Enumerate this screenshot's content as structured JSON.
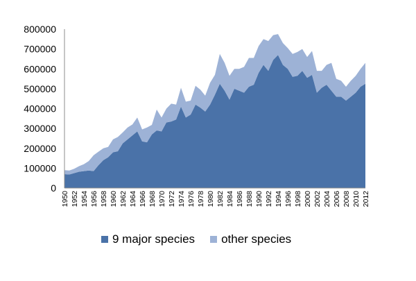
{
  "chart_data": {
    "type": "area",
    "stacked": true,
    "x": [
      1950,
      1951,
      1952,
      1953,
      1954,
      1955,
      1956,
      1957,
      1958,
      1959,
      1960,
      1961,
      1962,
      1963,
      1964,
      1965,
      1966,
      1967,
      1968,
      1969,
      1970,
      1971,
      1972,
      1973,
      1974,
      1975,
      1976,
      1977,
      1978,
      1979,
      1980,
      1981,
      1982,
      1983,
      1984,
      1985,
      1986,
      1987,
      1988,
      1989,
      1990,
      1991,
      1992,
      1993,
      1994,
      1995,
      1996,
      1997,
      1998,
      1999,
      2000,
      2001,
      2002,
      2003,
      2004,
      2005,
      2006,
      2007,
      2008,
      2009,
      2010,
      2011,
      2012
    ],
    "x_tick_labels": [
      "1950",
      "1952",
      "1954",
      "1956",
      "1958",
      "1960",
      "1962",
      "1964",
      "1966",
      "1968",
      "1970",
      "1972",
      "1974",
      "1976",
      "1978",
      "1980",
      "1982",
      "1984",
      "1986",
      "1988",
      "1990",
      "1992",
      "1994",
      "1996",
      "1998",
      "2000",
      "2002",
      "2004",
      "2006",
      "2008",
      "2010",
      "2012"
    ],
    "series": [
      {
        "name": "9 major species",
        "color": "#4a72a8",
        "values": [
          70000,
          68000,
          75000,
          82000,
          85000,
          88000,
          85000,
          115000,
          140000,
          155000,
          180000,
          185000,
          225000,
          245000,
          265000,
          285000,
          235000,
          230000,
          270000,
          290000,
          285000,
          330000,
          335000,
          345000,
          410000,
          355000,
          370000,
          420000,
          405000,
          385000,
          420000,
          470000,
          525000,
          490000,
          445000,
          500000,
          490000,
          480000,
          510000,
          520000,
          580000,
          620000,
          590000,
          645000,
          670000,
          620000,
          600000,
          560000,
          565000,
          590000,
          555000,
          570000,
          480000,
          505000,
          520000,
          490000,
          460000,
          460000,
          440000,
          460000,
          480000,
          510000,
          525000
        ]
      },
      {
        "name": "other species",
        "color": "#9db2d6",
        "values": [
          20000,
          20000,
          22000,
          28000,
          35000,
          48000,
          80000,
          68000,
          60000,
          52000,
          65000,
          72000,
          55000,
          60000,
          55000,
          70000,
          60000,
          75000,
          48000,
          105000,
          70000,
          70000,
          90000,
          75000,
          95000,
          80000,
          70000,
          95000,
          90000,
          80000,
          110000,
          100000,
          150000,
          140000,
          120000,
          100000,
          110000,
          130000,
          145000,
          135000,
          135000,
          130000,
          150000,
          125000,
          105000,
          110000,
          105000,
          115000,
          120000,
          110000,
          105000,
          120000,
          110000,
          85000,
          100000,
          140000,
          90000,
          80000,
          70000,
          80000,
          85000,
          90000,
          105000
        ]
      }
    ],
    "ylim": [
      0,
      800000
    ],
    "y_ticks": [
      0,
      100000,
      200000,
      300000,
      400000,
      500000,
      600000,
      700000,
      800000
    ],
    "y_tick_labels": [
      "0",
      "100000",
      "200000",
      "300000",
      "400000",
      "500000",
      "600000",
      "700000",
      "800000"
    ],
    "title": "",
    "xlabel": "",
    "ylabel": "",
    "grid": false,
    "legend_position": "bottom"
  },
  "legend": {
    "items": [
      {
        "label": "9 major species",
        "color": "#4a72a8"
      },
      {
        "label": "other species",
        "color": "#9db2d6"
      }
    ]
  }
}
